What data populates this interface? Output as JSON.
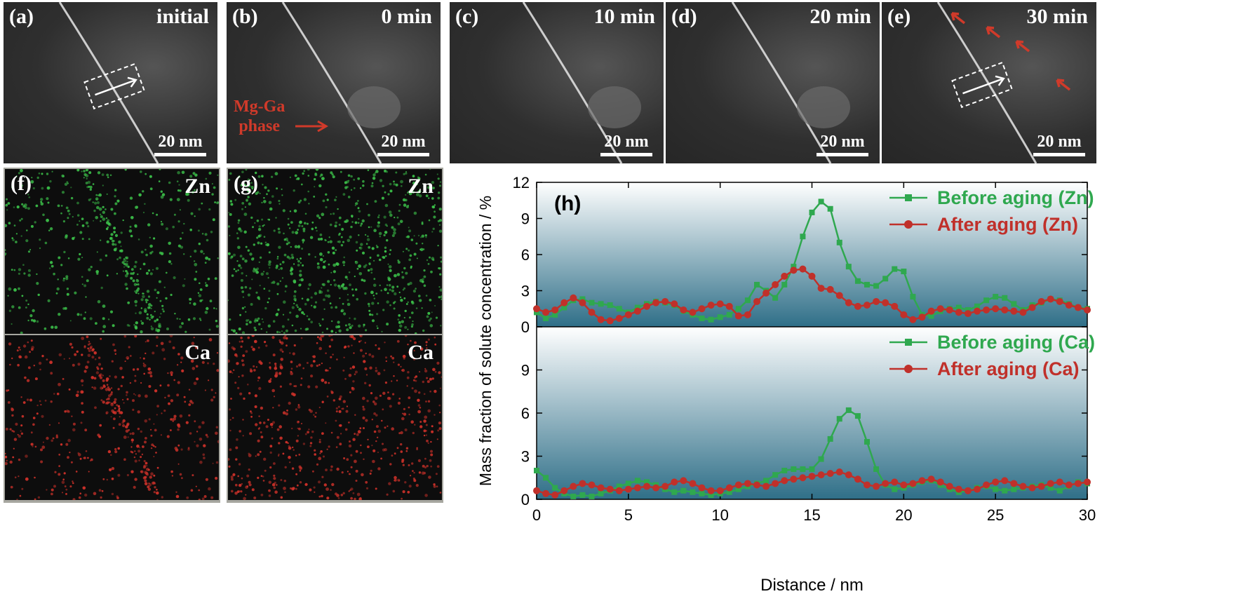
{
  "tem_panels": [
    {
      "label": "(a)",
      "title": "initial",
      "scale": "20 nm"
    },
    {
      "label": "(b)",
      "title": "0 min",
      "scale": "20 nm",
      "annotation": [
        "Mg-Ga",
        "phase"
      ]
    },
    {
      "label": "(c)",
      "title": "10 min",
      "scale": "20 nm"
    },
    {
      "label": "(d)",
      "title": "20 min",
      "scale": "20 nm"
    },
    {
      "label": "(e)",
      "title": "30 min",
      "scale": "20 nm"
    }
  ],
  "maps": {
    "f": {
      "label": "(f)",
      "top_element": "Zn",
      "bottom_element": "Ca"
    },
    "g": {
      "label": "(g)",
      "top_element": "Zn",
      "bottom_element": "Ca"
    }
  },
  "colors": {
    "before": "#2fa84f",
    "after": "#c0302a",
    "zn_dot": "#3cc24a",
    "ca_dot": "#d2322a",
    "annotation": "#d03a2a"
  },
  "chart_data": [
    {
      "type": "line",
      "panel_label": "(h)",
      "xlabel": "",
      "ylabel": "Mass fraction of solute concentration / %",
      "ylim": [
        0,
        12
      ],
      "yticks": [
        0,
        3,
        6,
        9,
        12
      ],
      "xlim": [
        0,
        30
      ],
      "legend_position": "top-right",
      "series": [
        {
          "name": "Before aging (Zn)",
          "marker": "square",
          "color": "#2fa84f",
          "x": [
            0,
            0.5,
            1,
            1.5,
            2,
            2.5,
            3,
            3.5,
            4,
            4.5,
            5,
            5.5,
            6,
            6.5,
            7,
            7.5,
            8,
            8.5,
            9,
            9.5,
            10,
            10.5,
            11,
            11.5,
            12,
            12.5,
            13,
            13.5,
            14,
            14.5,
            15,
            15.5,
            16,
            16.5,
            17,
            17.5,
            18,
            18.5,
            19,
            19.5,
            20,
            20.5,
            21,
            21.5,
            22,
            22.5,
            23,
            23.5,
            24,
            24.5,
            25,
            25.5,
            26,
            26.5,
            27,
            27.5,
            28,
            28.5,
            29,
            29.5,
            30
          ],
          "y": [
            1.2,
            0.7,
            1.0,
            1.6,
            2.2,
            2.3,
            2.0,
            1.9,
            1.8,
            1.5,
            1.2,
            1.6,
            1.9,
            2.1,
            2.0,
            1.8,
            1.3,
            1.0,
            0.7,
            0.6,
            0.8,
            1.0,
            1.5,
            2.2,
            3.5,
            3.0,
            2.4,
            3.5,
            5.0,
            7.5,
            9.5,
            10.4,
            9.8,
            7.0,
            5.0,
            3.8,
            3.5,
            3.4,
            4.0,
            4.8,
            4.6,
            2.5,
            1.0,
            0.9,
            1.3,
            1.5,
            1.6,
            1.4,
            1.7,
            2.2,
            2.5,
            2.4,
            1.9,
            1.4,
            1.8,
            2.0,
            2.3,
            2.2,
            1.9,
            1.6,
            1.5
          ]
        },
        {
          "name": "After aging (Zn)",
          "marker": "circle",
          "color": "#c0302a",
          "x": [
            0,
            0.5,
            1,
            1.5,
            2,
            2.5,
            3,
            3.5,
            4,
            4.5,
            5,
            5.5,
            6,
            6.5,
            7,
            7.5,
            8,
            8.5,
            9,
            9.5,
            10,
            10.5,
            11,
            11.5,
            12,
            12.5,
            13,
            13.5,
            14,
            14.5,
            15,
            15.5,
            16,
            16.5,
            17,
            17.5,
            18,
            18.5,
            19,
            19.5,
            20,
            20.5,
            21,
            21.5,
            22,
            22.5,
            23,
            23.5,
            24,
            24.5,
            25,
            25.5,
            26,
            26.5,
            27,
            27.5,
            28,
            28.5,
            29,
            29.5,
            30
          ],
          "y": [
            1.5,
            1.2,
            1.4,
            2.0,
            2.4,
            2.0,
            1.2,
            0.6,
            0.5,
            0.7,
            1.0,
            1.3,
            1.7,
            2.0,
            2.1,
            1.9,
            1.4,
            1.2,
            1.5,
            1.8,
            1.9,
            1.7,
            0.9,
            1.0,
            2.1,
            2.8,
            3.5,
            4.2,
            4.7,
            4.8,
            4.2,
            3.2,
            3.1,
            2.6,
            2.0,
            1.7,
            1.8,
            2.1,
            2.0,
            1.7,
            1.0,
            0.6,
            0.8,
            1.3,
            1.5,
            1.4,
            1.2,
            1.1,
            1.3,
            1.4,
            1.5,
            1.4,
            1.3,
            1.2,
            1.6,
            2.1,
            2.3,
            2.1,
            1.8,
            1.6,
            1.4
          ]
        },
        {
          "name": "Before aging (Ca)",
          "marker": "square",
          "color": "#2fa84f",
          "x": [
            0,
            0.5,
            1,
            1.5,
            2,
            2.5,
            3,
            3.5,
            4,
            4.5,
            5,
            5.5,
            6,
            6.5,
            7,
            7.5,
            8,
            8.5,
            9,
            9.5,
            10,
            10.5,
            11,
            11.5,
            12,
            12.5,
            13,
            13.5,
            14,
            14.5,
            15,
            15.5,
            16,
            16.5,
            17,
            17.5,
            18,
            18.5,
            19,
            19.5,
            20,
            20.5,
            21,
            21.5,
            22,
            22.5,
            23,
            23.5,
            24,
            24.5,
            25,
            25.5,
            26,
            26.5,
            27,
            27.5,
            28,
            28.5,
            29,
            29.5,
            30
          ],
          "y": [
            2.0,
            1.5,
            0.8,
            0.4,
            0.2,
            0.3,
            0.2,
            0.4,
            0.6,
            0.9,
            1.1,
            1.3,
            1.2,
            1.0,
            0.7,
            0.5,
            0.6,
            0.5,
            0.4,
            0.3,
            0.4,
            0.5,
            0.7,
            0.9,
            1.1,
            1.3,
            1.7,
            2.0,
            2.1,
            2.1,
            2.1,
            2.8,
            4.2,
            5.6,
            6.2,
            5.8,
            4.0,
            2.1,
            1.0,
            0.7,
            0.8,
            1.0,
            1.2,
            1.3,
            1.0,
            0.7,
            0.5,
            0.6,
            0.8,
            0.9,
            0.7,
            0.6,
            0.7,
            0.8,
            0.9,
            1.0,
            0.8,
            0.6,
            0.9,
            1.2,
            1.1
          ]
        },
        {
          "name": "After aging (Ca)",
          "marker": "circle",
          "color": "#c0302a",
          "x": [
            0,
            0.5,
            1,
            1.5,
            2,
            2.5,
            3,
            3.5,
            4,
            4.5,
            5,
            5.5,
            6,
            6.5,
            7,
            7.5,
            8,
            8.5,
            9,
            9.5,
            10,
            10.5,
            11,
            11.5,
            12,
            12.5,
            13,
            13.5,
            14,
            14.5,
            15,
            15.5,
            16,
            16.5,
            17,
            17.5,
            18,
            18.5,
            19,
            19.5,
            20,
            20.5,
            21,
            21.5,
            22,
            22.5,
            23,
            23.5,
            24,
            24.5,
            25,
            25.5,
            26,
            26.5,
            27,
            27.5,
            28,
            28.5,
            29,
            29.5,
            30
          ],
          "y": [
            0.6,
            0.4,
            0.3,
            0.6,
            0.9,
            1.1,
            1.0,
            0.8,
            0.7,
            0.6,
            0.7,
            0.8,
            0.9,
            0.8,
            0.9,
            1.2,
            1.3,
            1.1,
            0.8,
            0.6,
            0.6,
            0.8,
            1.0,
            1.1,
            1.0,
            0.9,
            1.1,
            1.3,
            1.4,
            1.5,
            1.6,
            1.7,
            1.8,
            1.9,
            1.7,
            1.4,
            1.0,
            0.9,
            1.1,
            1.2,
            1.0,
            1.1,
            1.3,
            1.4,
            1.2,
            0.9,
            0.7,
            0.6,
            0.7,
            1.0,
            1.2,
            1.3,
            1.1,
            0.9,
            0.8,
            0.9,
            1.1,
            1.2,
            1.0,
            1.1,
            1.2
          ]
        }
      ],
      "xticks": [
        0,
        5,
        10,
        15,
        20,
        25,
        30
      ],
      "shared_xlabel": "Distance / nm"
    }
  ]
}
